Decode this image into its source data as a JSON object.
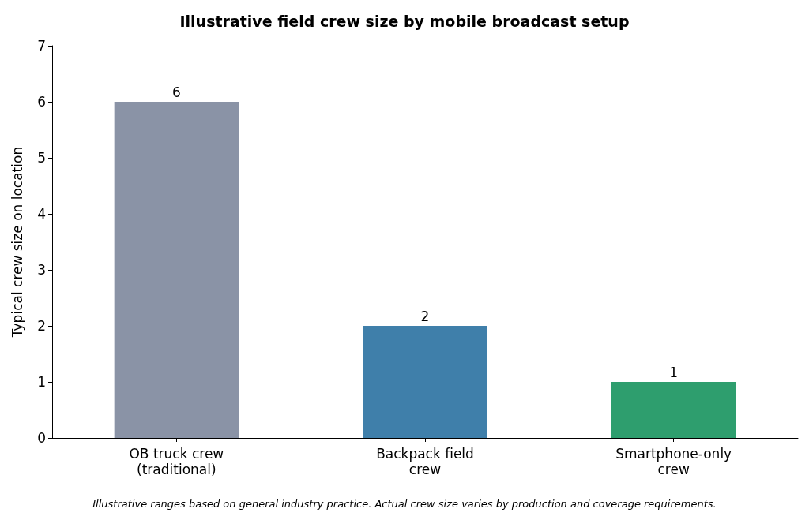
{
  "chart_data": {
    "type": "bar",
    "title": "Illustrative field crew size by mobile broadcast setup",
    "ylabel": "Typical crew size on location",
    "categories": [
      "OB truck crew\n(traditional)",
      "Backpack field\ncrew",
      "Smartphone-only\ncrew"
    ],
    "values": [
      6,
      2,
      1
    ],
    "colors": [
      "#8a93a6",
      "#3f7faa",
      "#2e9e6e"
    ],
    "ylim": [
      0,
      7
    ],
    "yticks": [
      0,
      1,
      2,
      3,
      4,
      5,
      6,
      7
    ],
    "data_labels": true,
    "grid": false,
    "annotations": [
      "Illustrative ranges based on general industry practice. Actual crew size varies by production and coverage requirements."
    ]
  }
}
